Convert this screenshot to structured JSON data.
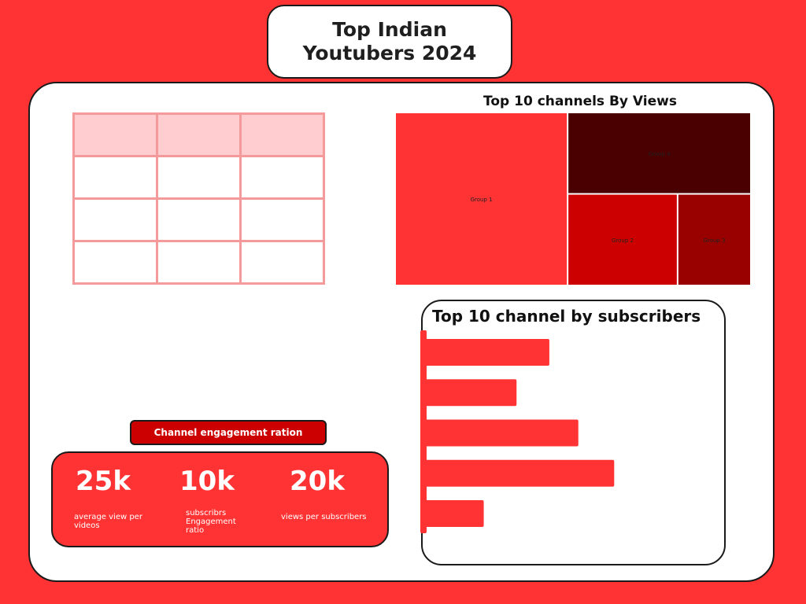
{
  "header": {
    "title_line1": "Top Indian",
    "title_line2": "Youtubers 2024"
  },
  "table": {
    "rows": 4,
    "cols": 3,
    "header_color": "#ffcccf",
    "border_color": "#f59a9a"
  },
  "engagement": {
    "label": "Channel engagement  ration",
    "stats": [
      {
        "value": "25k",
        "label": "average view per videos"
      },
      {
        "value": "10k",
        "label": "subscribrs Engagement ratio"
      },
      {
        "value": "20k",
        "label": "views per subscribers"
      }
    ]
  },
  "chart_data": [
    {
      "type": "treemap",
      "title": "Top 10 channels  By  Views",
      "groups": [
        {
          "name": "Group 1",
          "value": 4,
          "color": "#ff3333"
        },
        {
          "name": "Group 4",
          "value": 2,
          "color": "#4a0000"
        },
        {
          "name": "Group 2",
          "value": 1.35,
          "color": "#cc0000"
        },
        {
          "name": "Group 3",
          "value": 0.9,
          "color": "#990000"
        }
      ]
    },
    {
      "type": "bar",
      "orientation": "horizontal",
      "title": "Top 10 channel by subscribers",
      "categories": [
        "",
        "",
        "",
        "",
        ""
      ],
      "values": [
        165,
        122,
        203,
        250,
        79
      ],
      "xlim": [
        0,
        260
      ],
      "color": "#ff3333"
    }
  ]
}
